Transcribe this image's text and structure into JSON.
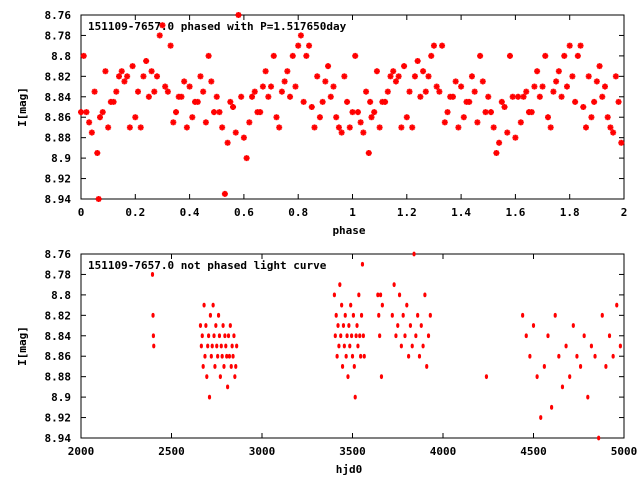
{
  "chart_data": [
    {
      "type": "scatter",
      "title": "151109-7657.0 phased with P=1.517650day",
      "xlabel": "phase",
      "ylabel": "I[mag]",
      "xlim": [
        0,
        2
      ],
      "ylim": [
        8.94,
        8.76
      ],
      "y_inverted": true,
      "xticks": [
        "0",
        "0.2",
        "0.4",
        "0.6",
        "0.8",
        "1",
        "1.2",
        "1.4",
        "1.6",
        "1.8",
        "2"
      ],
      "yticks": [
        "8.76",
        "8.78",
        "8.8",
        "8.82",
        "8.84",
        "8.86",
        "8.88",
        "8.9",
        "8.92",
        "8.94"
      ],
      "marker": "asterisk",
      "color": "#ff0000",
      "grid": false,
      "note": "Repeated phase diagram (0-1 mirrored to 1-2)",
      "points": [
        [
          0.0,
          8.855
        ],
        [
          0.01,
          8.8
        ],
        [
          0.02,
          8.855
        ],
        [
          0.03,
          8.865
        ],
        [
          0.04,
          8.875
        ],
        [
          0.05,
          8.835
        ],
        [
          0.06,
          8.895
        ],
        [
          0.065,
          8.94
        ],
        [
          0.07,
          8.86
        ],
        [
          0.08,
          8.855
        ],
        [
          0.09,
          8.815
        ],
        [
          0.1,
          8.87
        ],
        [
          0.11,
          8.845
        ],
        [
          0.12,
          8.845
        ],
        [
          0.13,
          8.835
        ],
        [
          0.14,
          8.82
        ],
        [
          0.15,
          8.815
        ],
        [
          0.16,
          8.825
        ],
        [
          0.17,
          8.82
        ],
        [
          0.18,
          8.87
        ],
        [
          0.19,
          8.81
        ],
        [
          0.2,
          8.86
        ],
        [
          0.21,
          8.835
        ],
        [
          0.22,
          8.87
        ],
        [
          0.23,
          8.82
        ],
        [
          0.24,
          8.805
        ],
        [
          0.25,
          8.84
        ],
        [
          0.26,
          8.815
        ],
        [
          0.27,
          8.835
        ],
        [
          0.28,
          8.82
        ],
        [
          0.29,
          8.78
        ],
        [
          0.3,
          8.77
        ],
        [
          0.31,
          8.83
        ],
        [
          0.32,
          8.835
        ],
        [
          0.33,
          8.79
        ],
        [
          0.34,
          8.865
        ],
        [
          0.35,
          8.855
        ],
        [
          0.36,
          8.84
        ],
        [
          0.37,
          8.84
        ],
        [
          0.38,
          8.825
        ],
        [
          0.39,
          8.87
        ],
        [
          0.4,
          8.83
        ],
        [
          0.41,
          8.86
        ],
        [
          0.42,
          8.845
        ],
        [
          0.43,
          8.845
        ],
        [
          0.44,
          8.82
        ],
        [
          0.45,
          8.835
        ],
        [
          0.46,
          8.865
        ],
        [
          0.47,
          8.8
        ],
        [
          0.48,
          8.825
        ],
        [
          0.49,
          8.855
        ],
        [
          0.5,
          8.84
        ],
        [
          0.51,
          8.855
        ],
        [
          0.52,
          8.87
        ],
        [
          0.53,
          8.935
        ],
        [
          0.54,
          8.885
        ],
        [
          0.55,
          8.845
        ],
        [
          0.56,
          8.85
        ],
        [
          0.57,
          8.875
        ],
        [
          0.58,
          8.76
        ],
        [
          0.59,
          8.84
        ],
        [
          0.6,
          8.88
        ],
        [
          0.61,
          8.9
        ],
        [
          0.62,
          8.865
        ],
        [
          0.63,
          8.84
        ],
        [
          0.64,
          8.835
        ],
        [
          0.65,
          8.855
        ],
        [
          0.66,
          8.855
        ],
        [
          0.67,
          8.83
        ],
        [
          0.68,
          8.815
        ],
        [
          0.69,
          8.84
        ],
        [
          0.7,
          8.83
        ],
        [
          0.71,
          8.8
        ],
        [
          0.72,
          8.86
        ],
        [
          0.73,
          8.87
        ],
        [
          0.74,
          8.835
        ],
        [
          0.75,
          8.825
        ],
        [
          0.76,
          8.815
        ],
        [
          0.77,
          8.84
        ],
        [
          0.78,
          8.8
        ],
        [
          0.79,
          8.83
        ],
        [
          0.8,
          8.79
        ],
        [
          0.81,
          8.78
        ],
        [
          0.82,
          8.845
        ],
        [
          0.83,
          8.8
        ],
        [
          0.84,
          8.79
        ],
        [
          0.85,
          8.85
        ],
        [
          0.86,
          8.87
        ],
        [
          0.87,
          8.82
        ],
        [
          0.88,
          8.86
        ],
        [
          0.89,
          8.845
        ],
        [
          0.9,
          8.825
        ],
        [
          0.91,
          8.81
        ],
        [
          0.92,
          8.84
        ],
        [
          0.93,
          8.83
        ],
        [
          0.94,
          8.86
        ],
        [
          0.95,
          8.87
        ],
        [
          0.96,
          8.875
        ],
        [
          0.97,
          8.82
        ],
        [
          0.98,
          8.845
        ],
        [
          0.99,
          8.87
        ],
        [
          1.0,
          8.855
        ],
        [
          1.01,
          8.8
        ],
        [
          1.02,
          8.855
        ],
        [
          1.03,
          8.865
        ],
        [
          1.04,
          8.875
        ],
        [
          1.05,
          8.835
        ],
        [
          1.06,
          8.895
        ],
        [
          1.065,
          8.845
        ],
        [
          1.07,
          8.86
        ],
        [
          1.08,
          8.855
        ],
        [
          1.09,
          8.815
        ],
        [
          1.1,
          8.87
        ],
        [
          1.11,
          8.845
        ],
        [
          1.12,
          8.845
        ],
        [
          1.13,
          8.835
        ],
        [
          1.14,
          8.82
        ],
        [
          1.15,
          8.815
        ],
        [
          1.16,
          8.825
        ],
        [
          1.17,
          8.82
        ],
        [
          1.18,
          8.87
        ],
        [
          1.19,
          8.81
        ],
        [
          1.2,
          8.86
        ],
        [
          1.21,
          8.835
        ],
        [
          1.22,
          8.87
        ],
        [
          1.23,
          8.82
        ],
        [
          1.24,
          8.805
        ],
        [
          1.25,
          8.84
        ],
        [
          1.26,
          8.815
        ],
        [
          1.27,
          8.835
        ],
        [
          1.28,
          8.82
        ],
        [
          1.29,
          8.8
        ],
        [
          1.3,
          8.79
        ],
        [
          1.31,
          8.83
        ],
        [
          1.32,
          8.835
        ],
        [
          1.33,
          8.79
        ],
        [
          1.34,
          8.865
        ],
        [
          1.35,
          8.855
        ],
        [
          1.36,
          8.84
        ],
        [
          1.37,
          8.84
        ],
        [
          1.38,
          8.825
        ],
        [
          1.39,
          8.87
        ],
        [
          1.4,
          8.83
        ],
        [
          1.41,
          8.86
        ],
        [
          1.42,
          8.845
        ],
        [
          1.43,
          8.845
        ],
        [
          1.44,
          8.82
        ],
        [
          1.45,
          8.835
        ],
        [
          1.46,
          8.865
        ],
        [
          1.47,
          8.8
        ],
        [
          1.48,
          8.825
        ],
        [
          1.49,
          8.855
        ],
        [
          1.5,
          8.84
        ],
        [
          1.51,
          8.855
        ],
        [
          1.52,
          8.87
        ],
        [
          1.53,
          8.895
        ],
        [
          1.54,
          8.885
        ],
        [
          1.55,
          8.845
        ],
        [
          1.56,
          8.85
        ],
        [
          1.57,
          8.875
        ],
        [
          1.58,
          8.8
        ],
        [
          1.59,
          8.84
        ],
        [
          1.6,
          8.88
        ],
        [
          1.61,
          8.84
        ],
        [
          1.62,
          8.865
        ],
        [
          1.63,
          8.84
        ],
        [
          1.64,
          8.835
        ],
        [
          1.65,
          8.855
        ],
        [
          1.66,
          8.855
        ],
        [
          1.67,
          8.83
        ],
        [
          1.68,
          8.815
        ],
        [
          1.69,
          8.84
        ],
        [
          1.7,
          8.83
        ],
        [
          1.71,
          8.8
        ],
        [
          1.72,
          8.86
        ],
        [
          1.73,
          8.87
        ],
        [
          1.74,
          8.835
        ],
        [
          1.75,
          8.825
        ],
        [
          1.76,
          8.815
        ],
        [
          1.77,
          8.84
        ],
        [
          1.78,
          8.8
        ],
        [
          1.79,
          8.83
        ],
        [
          1.8,
          8.79
        ],
        [
          1.81,
          8.82
        ],
        [
          1.82,
          8.845
        ],
        [
          1.83,
          8.8
        ],
        [
          1.84,
          8.79
        ],
        [
          1.85,
          8.85
        ],
        [
          1.86,
          8.87
        ],
        [
          1.87,
          8.82
        ],
        [
          1.88,
          8.86
        ],
        [
          1.89,
          8.845
        ],
        [
          1.9,
          8.825
        ],
        [
          1.91,
          8.81
        ],
        [
          1.92,
          8.84
        ],
        [
          1.93,
          8.83
        ],
        [
          1.94,
          8.86
        ],
        [
          1.95,
          8.87
        ],
        [
          1.96,
          8.875
        ],
        [
          1.97,
          8.82
        ],
        [
          1.98,
          8.845
        ],
        [
          1.99,
          8.885
        ]
      ]
    },
    {
      "type": "scatter",
      "title": "151109-7657.0 not phased light curve",
      "xlabel": "hjd0",
      "ylabel": "I[mag]",
      "xlim": [
        2000,
        5000
      ],
      "ylim": [
        8.94,
        8.76
      ],
      "y_inverted": true,
      "xticks": [
        "2000",
        "2500",
        "3000",
        "3500",
        "4000",
        "4500",
        "5000"
      ],
      "yticks": [
        "8.76",
        "8.78",
        "8.8",
        "8.82",
        "8.84",
        "8.86",
        "8.88",
        "8.9",
        "8.92",
        "8.94"
      ],
      "marker": "dot",
      "color": "#ff0000",
      "grid": false,
      "points": [
        [
          2395,
          8.78
        ],
        [
          2398,
          8.82
        ],
        [
          2400,
          8.84
        ],
        [
          2402,
          8.85
        ],
        [
          2660,
          8.83
        ],
        [
          2665,
          8.85
        ],
        [
          2670,
          8.84
        ],
        [
          2675,
          8.87
        ],
        [
          2680,
          8.81
        ],
        [
          2685,
          8.86
        ],
        [
          2690,
          8.83
        ],
        [
          2695,
          8.88
        ],
        [
          2700,
          8.85
        ],
        [
          2705,
          8.84
        ],
        [
          2710,
          8.9
        ],
        [
          2715,
          8.82
        ],
        [
          2720,
          8.86
        ],
        [
          2725,
          8.85
        ],
        [
          2730,
          8.81
        ],
        [
          2735,
          8.84
        ],
        [
          2740,
          8.87
        ],
        [
          2745,
          8.83
        ],
        [
          2750,
          8.85
        ],
        [
          2755,
          8.86
        ],
        [
          2760,
          8.82
        ],
        [
          2765,
          8.84
        ],
        [
          2770,
          8.88
        ],
        [
          2775,
          8.85
        ],
        [
          2780,
          8.86
        ],
        [
          2785,
          8.83
        ],
        [
          2790,
          8.87
        ],
        [
          2795,
          8.84
        ],
        [
          2800,
          8.85
        ],
        [
          2805,
          8.86
        ],
        [
          2810,
          8.89
        ],
        [
          2815,
          8.84
        ],
        [
          2820,
          8.86
        ],
        [
          2825,
          8.83
        ],
        [
          2830,
          8.87
        ],
        [
          2835,
          8.85
        ],
        [
          2840,
          8.86
        ],
        [
          2845,
          8.84
        ],
        [
          2850,
          8.88
        ],
        [
          2855,
          8.87
        ],
        [
          2860,
          8.85
        ],
        [
          3400,
          8.8
        ],
        [
          3405,
          8.84
        ],
        [
          3410,
          8.82
        ],
        [
          3415,
          8.86
        ],
        [
          3420,
          8.83
        ],
        [
          3425,
          8.85
        ],
        [
          3430,
          8.79
        ],
        [
          3435,
          8.84
        ],
        [
          3440,
          8.81
        ],
        [
          3445,
          8.87
        ],
        [
          3450,
          8.83
        ],
        [
          3455,
          8.85
        ],
        [
          3460,
          8.82
        ],
        [
          3465,
          8.86
        ],
        [
          3470,
          8.84
        ],
        [
          3475,
          8.88
        ],
        [
          3480,
          8.83
        ],
        [
          3485,
          8.85
        ],
        [
          3490,
          8.81
        ],
        [
          3495,
          8.84
        ],
        [
          3500,
          8.86
        ],
        [
          3505,
          8.82
        ],
        [
          3510,
          8.87
        ],
        [
          3515,
          8.9
        ],
        [
          3520,
          8.84
        ],
        [
          3525,
          8.83
        ],
        [
          3530,
          8.85
        ],
        [
          3535,
          8.8
        ],
        [
          3540,
          8.84
        ],
        [
          3545,
          8.86
        ],
        [
          3550,
          8.82
        ],
        [
          3555,
          8.77
        ],
        [
          3560,
          8.84
        ],
        [
          3565,
          8.86
        ],
        [
          3640,
          8.8
        ],
        [
          3645,
          8.82
        ],
        [
          3650,
          8.84
        ],
        [
          3655,
          8.8
        ],
        [
          3660,
          8.88
        ],
        [
          3665,
          8.81
        ],
        [
          3720,
          8.82
        ],
        [
          3730,
          8.79
        ],
        [
          3740,
          8.84
        ],
        [
          3750,
          8.83
        ],
        [
          3760,
          8.8
        ],
        [
          3770,
          8.85
        ],
        [
          3780,
          8.82
        ],
        [
          3790,
          8.84
        ],
        [
          3800,
          8.81
        ],
        [
          3810,
          8.86
        ],
        [
          3820,
          8.83
        ],
        [
          3830,
          8.85
        ],
        [
          3840,
          8.76
        ],
        [
          3850,
          8.84
        ],
        [
          3860,
          8.82
        ],
        [
          3870,
          8.86
        ],
        [
          3880,
          8.83
        ],
        [
          3890,
          8.85
        ],
        [
          3900,
          8.8
        ],
        [
          3910,
          8.87
        ],
        [
          3920,
          8.84
        ],
        [
          3930,
          8.82
        ],
        [
          4240,
          8.88
        ],
        [
          4440,
          8.82
        ],
        [
          4460,
          8.84
        ],
        [
          4480,
          8.86
        ],
        [
          4500,
          8.83
        ],
        [
          4520,
          8.88
        ],
        [
          4540,
          8.92
        ],
        [
          4560,
          8.87
        ],
        [
          4580,
          8.84
        ],
        [
          4600,
          8.91
        ],
        [
          4620,
          8.82
        ],
        [
          4640,
          8.86
        ],
        [
          4660,
          8.89
        ],
        [
          4680,
          8.85
        ],
        [
          4700,
          8.88
        ],
        [
          4720,
          8.83
        ],
        [
          4740,
          8.86
        ],
        [
          4760,
          8.87
        ],
        [
          4780,
          8.84
        ],
        [
          4800,
          8.9
        ],
        [
          4820,
          8.85
        ],
        [
          4840,
          8.86
        ],
        [
          4860,
          8.94
        ],
        [
          4880,
          8.82
        ],
        [
          4900,
          8.87
        ],
        [
          4920,
          8.84
        ],
        [
          4940,
          8.86
        ],
        [
          4960,
          8.81
        ],
        [
          4980,
          8.85
        ]
      ]
    }
  ]
}
